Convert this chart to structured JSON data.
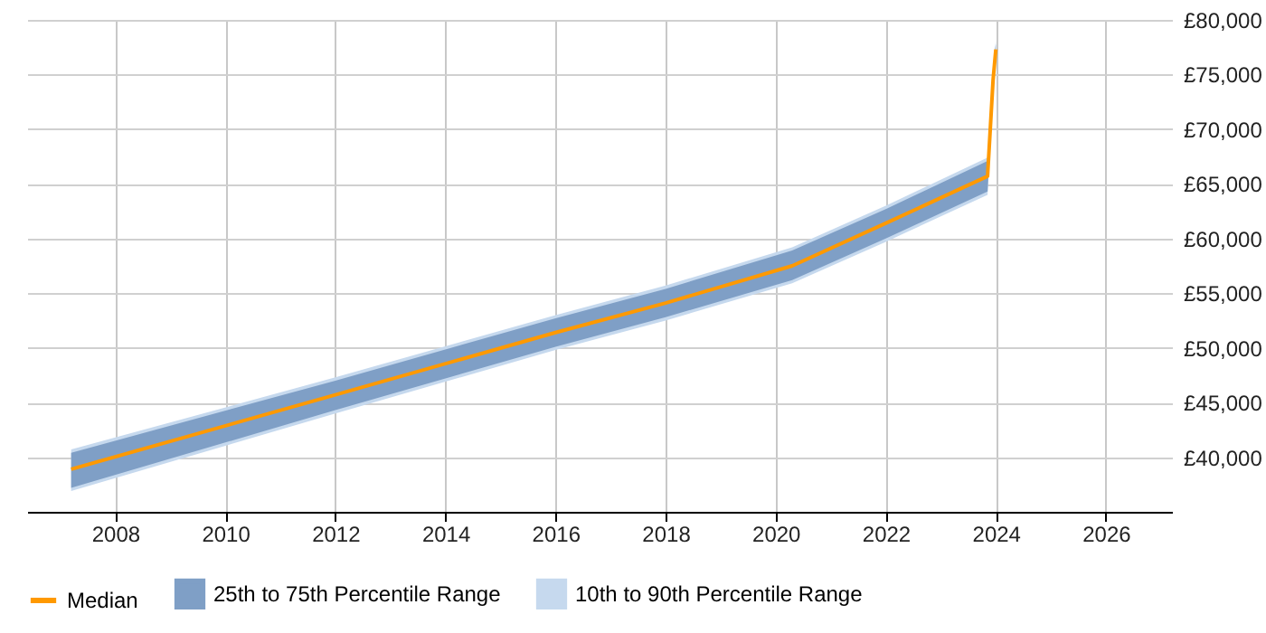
{
  "chart_data": {
    "type": "line",
    "x": [
      2007.2,
      2012,
      2016,
      2018,
      2020.3,
      2022,
      2023.85,
      2023.95,
      2024.0
    ],
    "series": [
      {
        "name": "Median",
        "color": "#ff9900",
        "values": [
          38900,
          45700,
          51400,
          54100,
          57500,
          61400,
          65700,
          74500,
          77300
        ]
      },
      {
        "name": "25th to 75th Percentile Range",
        "type": "area",
        "color": "#7f9fc6",
        "values": [
          null,
          null,
          null,
          null,
          null,
          null,
          null,
          null,
          null
        ],
        "lower": [
          37200,
          44300,
          50100,
          52800,
          56200,
          60000,
          64300,
          73500,
          76600
        ],
        "upper": [
          40400,
          47000,
          52700,
          55400,
          58900,
          62700,
          67100,
          75500,
          77800
        ]
      },
      {
        "name": "10th to 90th Percentile Range",
        "type": "area",
        "color": "#c6d9ee",
        "values": [
          null,
          null,
          null,
          null,
          null,
          null,
          null,
          null,
          null
        ],
        "lower": [
          36900,
          44000,
          49800,
          52500,
          55900,
          59700,
          64000,
          73200,
          76300
        ],
        "upper": [
          40700,
          47300,
          53000,
          55700,
          59200,
          63000,
          67400,
          75800,
          78100
        ]
      }
    ],
    "xlim": [
      2006.4,
      2027.2
    ],
    "xticks": [
      2008,
      2010,
      2012,
      2014,
      2016,
      2018,
      2020,
      2022,
      2024,
      2026
    ],
    "ylim": [
      35000,
      80000
    ],
    "yticks": [
      {
        "value": 40000,
        "label": "£40,000"
      },
      {
        "value": 45000,
        "label": "£45,000"
      },
      {
        "value": 50000,
        "label": "£50,000"
      },
      {
        "value": 55000,
        "label": "£55,000"
      },
      {
        "value": 60000,
        "label": "£60,000"
      },
      {
        "value": 65000,
        "label": "£65,000"
      },
      {
        "value": 70000,
        "label": "£70,000"
      },
      {
        "value": 75000,
        "label": "£75,000"
      },
      {
        "value": 80000,
        "label": "£80,000"
      }
    ],
    "grid": true,
    "legend": "bottom"
  }
}
